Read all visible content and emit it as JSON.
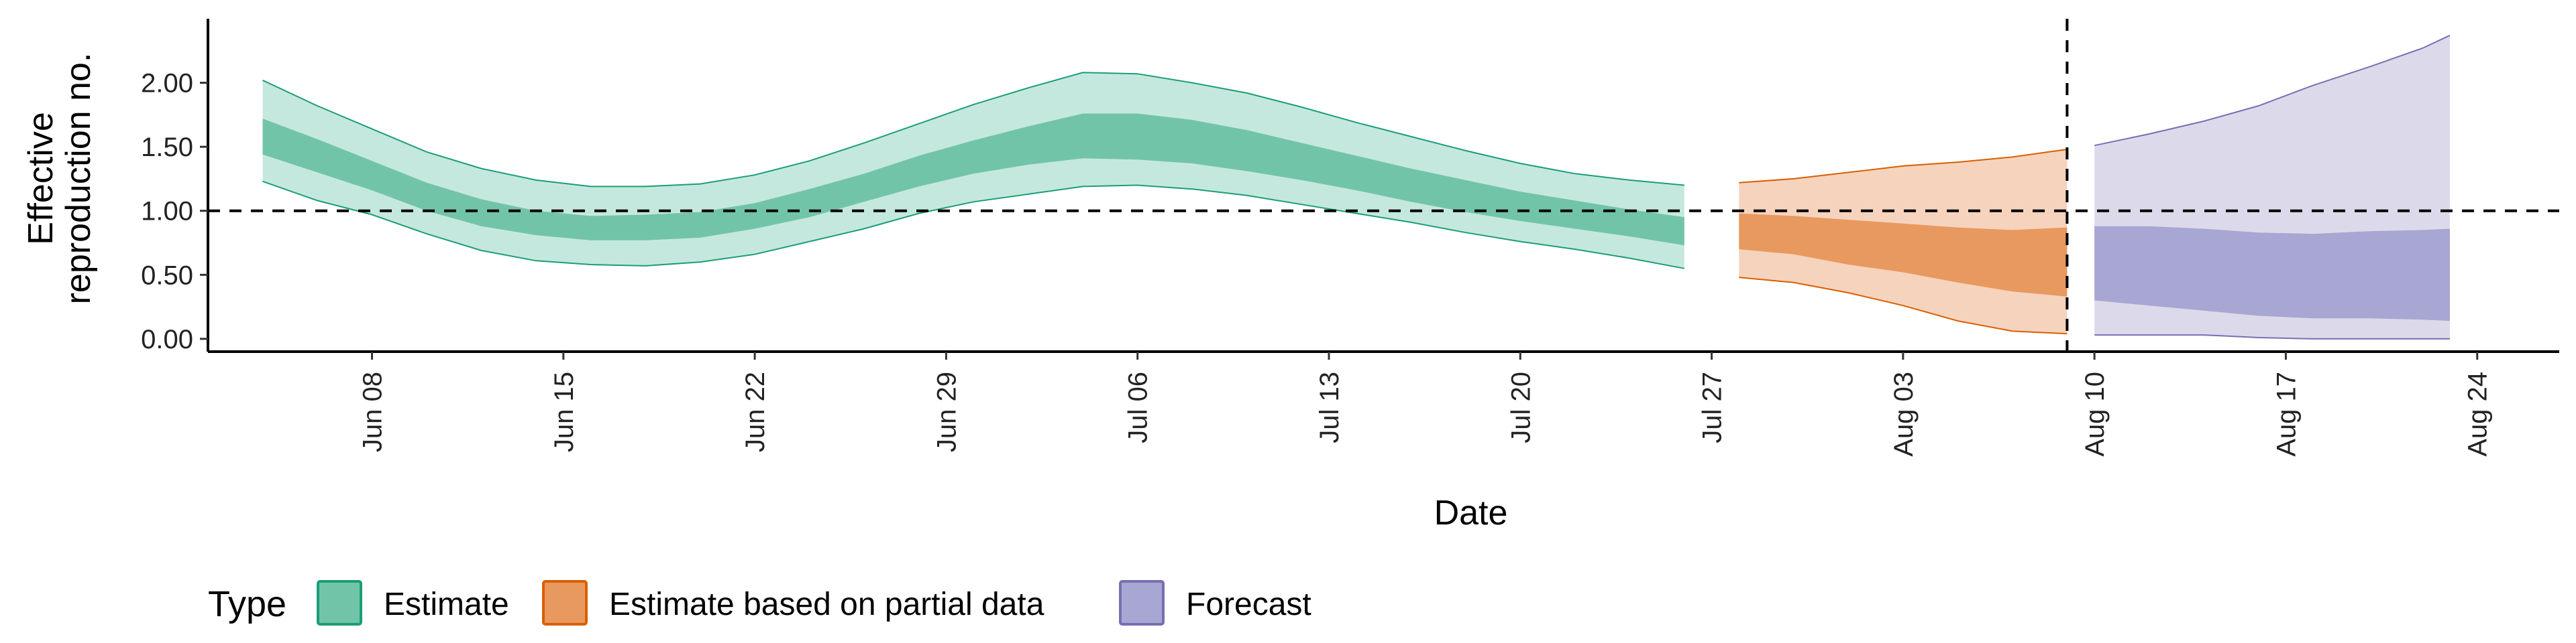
{
  "chart_data": {
    "type": "area",
    "xlabel": "Date",
    "ylabel_lines": [
      "Effective",
      "reproduction no."
    ],
    "x_range": [
      "2020-06-02",
      "2020-08-27"
    ],
    "ylim": [
      -0.1,
      2.5
    ],
    "y_ticks": [
      {
        "value": 0.0,
        "label": "0.00"
      },
      {
        "value": 0.5,
        "label": "0.50"
      },
      {
        "value": 1.0,
        "label": "1.00"
      },
      {
        "value": 1.5,
        "label": "1.50"
      },
      {
        "value": 2.0,
        "label": "2.00"
      }
    ],
    "x_ticks": [
      {
        "date": "2020-06-08",
        "label": "Jun 08"
      },
      {
        "date": "2020-06-15",
        "label": "Jun 15"
      },
      {
        "date": "2020-06-22",
        "label": "Jun 22"
      },
      {
        "date": "2020-06-29",
        "label": "Jun 29"
      },
      {
        "date": "2020-07-06",
        "label": "Jul 06"
      },
      {
        "date": "2020-07-13",
        "label": "Jul 13"
      },
      {
        "date": "2020-07-20",
        "label": "Jul 20"
      },
      {
        "date": "2020-07-27",
        "label": "Jul 27"
      },
      {
        "date": "2020-08-03",
        "label": "Aug 03"
      },
      {
        "date": "2020-08-10",
        "label": "Aug 10"
      },
      {
        "date": "2020-08-17",
        "label": "Aug 17"
      },
      {
        "date": "2020-08-24",
        "label": "Aug 24"
      }
    ],
    "reference_lines": {
      "horizontal_y": 1.0,
      "vertical_date": "2020-08-09"
    },
    "grid": false,
    "legend": {
      "title": "Type",
      "position": "bottom-left",
      "entries": [
        {
          "label": "Estimate",
          "series": "estimate"
        },
        {
          "label": "Estimate based on partial data",
          "series": "partial"
        },
        {
          "label": "Forecast",
          "series": "forecast"
        }
      ]
    },
    "series": [
      {
        "key": "estimate",
        "fill_color": "#66c2a5",
        "fill_light": "#c5e8de",
        "fill_dark": "#72c4a8",
        "line_color": "#1b9e77",
        "points": [
          {
            "date": "2020-06-04",
            "lo90": 1.23,
            "lo50": 1.44,
            "hi50": 1.72,
            "hi90": 2.02
          },
          {
            "date": "2020-06-06",
            "lo90": 1.08,
            "lo50": 1.3,
            "hi50": 1.56,
            "hi90": 1.82
          },
          {
            "date": "2020-06-08",
            "lo90": 0.97,
            "lo50": 1.16,
            "hi50": 1.39,
            "hi90": 1.64
          },
          {
            "date": "2020-06-10",
            "lo90": 0.82,
            "lo50": 1.0,
            "hi50": 1.22,
            "hi90": 1.46
          },
          {
            "date": "2020-06-12",
            "lo90": 0.69,
            "lo50": 0.88,
            "hi50": 1.09,
            "hi90": 1.33
          },
          {
            "date": "2020-06-14",
            "lo90": 0.61,
            "lo50": 0.81,
            "hi50": 1.0,
            "hi90": 1.24
          },
          {
            "date": "2020-06-16",
            "lo90": 0.58,
            "lo50": 0.77,
            "hi50": 0.96,
            "hi90": 1.19
          },
          {
            "date": "2020-06-18",
            "lo90": 0.57,
            "lo50": 0.77,
            "hi50": 0.97,
            "hi90": 1.19
          },
          {
            "date": "2020-06-20",
            "lo90": 0.6,
            "lo50": 0.79,
            "hi50": 0.99,
            "hi90": 1.21
          },
          {
            "date": "2020-06-22",
            "lo90": 0.66,
            "lo50": 0.86,
            "hi50": 1.06,
            "hi90": 1.28
          },
          {
            "date": "2020-06-24",
            "lo90": 0.76,
            "lo50": 0.95,
            "hi50": 1.17,
            "hi90": 1.39
          },
          {
            "date": "2020-06-26",
            "lo90": 0.86,
            "lo50": 1.07,
            "hi50": 1.29,
            "hi90": 1.53
          },
          {
            "date": "2020-06-28",
            "lo90": 0.98,
            "lo50": 1.19,
            "hi50": 1.43,
            "hi90": 1.68
          },
          {
            "date": "2020-06-30",
            "lo90": 1.07,
            "lo50": 1.29,
            "hi50": 1.55,
            "hi90": 1.83
          },
          {
            "date": "2020-07-02",
            "lo90": 1.13,
            "lo50": 1.36,
            "hi50": 1.66,
            "hi90": 1.96
          },
          {
            "date": "2020-07-04",
            "lo90": 1.19,
            "lo50": 1.41,
            "hi50": 1.76,
            "hi90": 2.08
          },
          {
            "date": "2020-07-06",
            "lo90": 1.2,
            "lo50": 1.4,
            "hi50": 1.76,
            "hi90": 2.07
          },
          {
            "date": "2020-07-08",
            "lo90": 1.17,
            "lo50": 1.37,
            "hi50": 1.71,
            "hi90": 2.0
          },
          {
            "date": "2020-07-10",
            "lo90": 1.12,
            "lo50": 1.31,
            "hi50": 1.63,
            "hi90": 1.92
          },
          {
            "date": "2020-07-12",
            "lo90": 1.05,
            "lo50": 1.24,
            "hi50": 1.53,
            "hi90": 1.81
          },
          {
            "date": "2020-07-14",
            "lo90": 0.98,
            "lo50": 1.16,
            "hi50": 1.43,
            "hi90": 1.69
          },
          {
            "date": "2020-07-16",
            "lo90": 0.91,
            "lo50": 1.07,
            "hi50": 1.33,
            "hi90": 1.58
          },
          {
            "date": "2020-07-18",
            "lo90": 0.83,
            "lo50": 0.99,
            "hi50": 1.24,
            "hi90": 1.47
          },
          {
            "date": "2020-07-20",
            "lo90": 0.76,
            "lo50": 0.92,
            "hi50": 1.15,
            "hi90": 1.37
          },
          {
            "date": "2020-07-22",
            "lo90": 0.7,
            "lo50": 0.86,
            "hi50": 1.08,
            "hi90": 1.29
          },
          {
            "date": "2020-07-24",
            "lo90": 0.63,
            "lo50": 0.8,
            "hi50": 1.01,
            "hi90": 1.24
          },
          {
            "date": "2020-07-26",
            "lo90": 0.55,
            "lo50": 0.73,
            "hi50": 0.95,
            "hi90": 1.2
          }
        ]
      },
      {
        "key": "partial",
        "fill_color": "#fc8d62",
        "fill_light": "#f6d3bd",
        "fill_dark": "#e8995f",
        "line_color": "#d95f02",
        "points": [
          {
            "date": "2020-07-28",
            "lo90": 0.48,
            "lo50": 0.7,
            "hi50": 0.98,
            "hi90": 1.22
          },
          {
            "date": "2020-07-30",
            "lo90": 0.44,
            "lo50": 0.66,
            "hi50": 0.96,
            "hi90": 1.25
          },
          {
            "date": "2020-08-01",
            "lo90": 0.36,
            "lo50": 0.58,
            "hi50": 0.93,
            "hi90": 1.3
          },
          {
            "date": "2020-08-03",
            "lo90": 0.26,
            "lo50": 0.52,
            "hi50": 0.9,
            "hi90": 1.35
          },
          {
            "date": "2020-08-05",
            "lo90": 0.14,
            "lo50": 0.44,
            "hi50": 0.87,
            "hi90": 1.38
          },
          {
            "date": "2020-08-07",
            "lo90": 0.06,
            "lo50": 0.37,
            "hi50": 0.85,
            "hi90": 1.42
          },
          {
            "date": "2020-08-09",
            "lo90": 0.04,
            "lo50": 0.33,
            "hi50": 0.87,
            "hi90": 1.48
          }
        ]
      },
      {
        "key": "forecast",
        "fill_color": "#8da0cb",
        "fill_light": "#dcdaea",
        "fill_dark": "#a8a6d2",
        "line_color": "#7570b3",
        "points": [
          {
            "date": "2020-08-10",
            "lo90": 0.03,
            "lo50": 0.3,
            "hi50": 0.88,
            "hi90": 1.51
          },
          {
            "date": "2020-08-12",
            "lo90": 0.03,
            "lo50": 0.26,
            "hi50": 0.88,
            "hi90": 1.6
          },
          {
            "date": "2020-08-14",
            "lo90": 0.03,
            "lo50": 0.22,
            "hi50": 0.86,
            "hi90": 1.7
          },
          {
            "date": "2020-08-16",
            "lo90": 0.01,
            "lo50": 0.18,
            "hi50": 0.83,
            "hi90": 1.82
          },
          {
            "date": "2020-08-18",
            "lo90": 0.0,
            "lo50": 0.16,
            "hi50": 0.82,
            "hi90": 1.98
          },
          {
            "date": "2020-08-20",
            "lo90": 0.0,
            "lo50": 0.16,
            "hi50": 0.84,
            "hi90": 2.12
          },
          {
            "date": "2020-08-22",
            "lo90": 0.0,
            "lo50": 0.15,
            "hi50": 0.85,
            "hi90": 2.27
          },
          {
            "date": "2020-08-23",
            "lo90": 0.0,
            "lo50": 0.14,
            "hi50": 0.86,
            "hi90": 2.37
          }
        ]
      }
    ]
  }
}
